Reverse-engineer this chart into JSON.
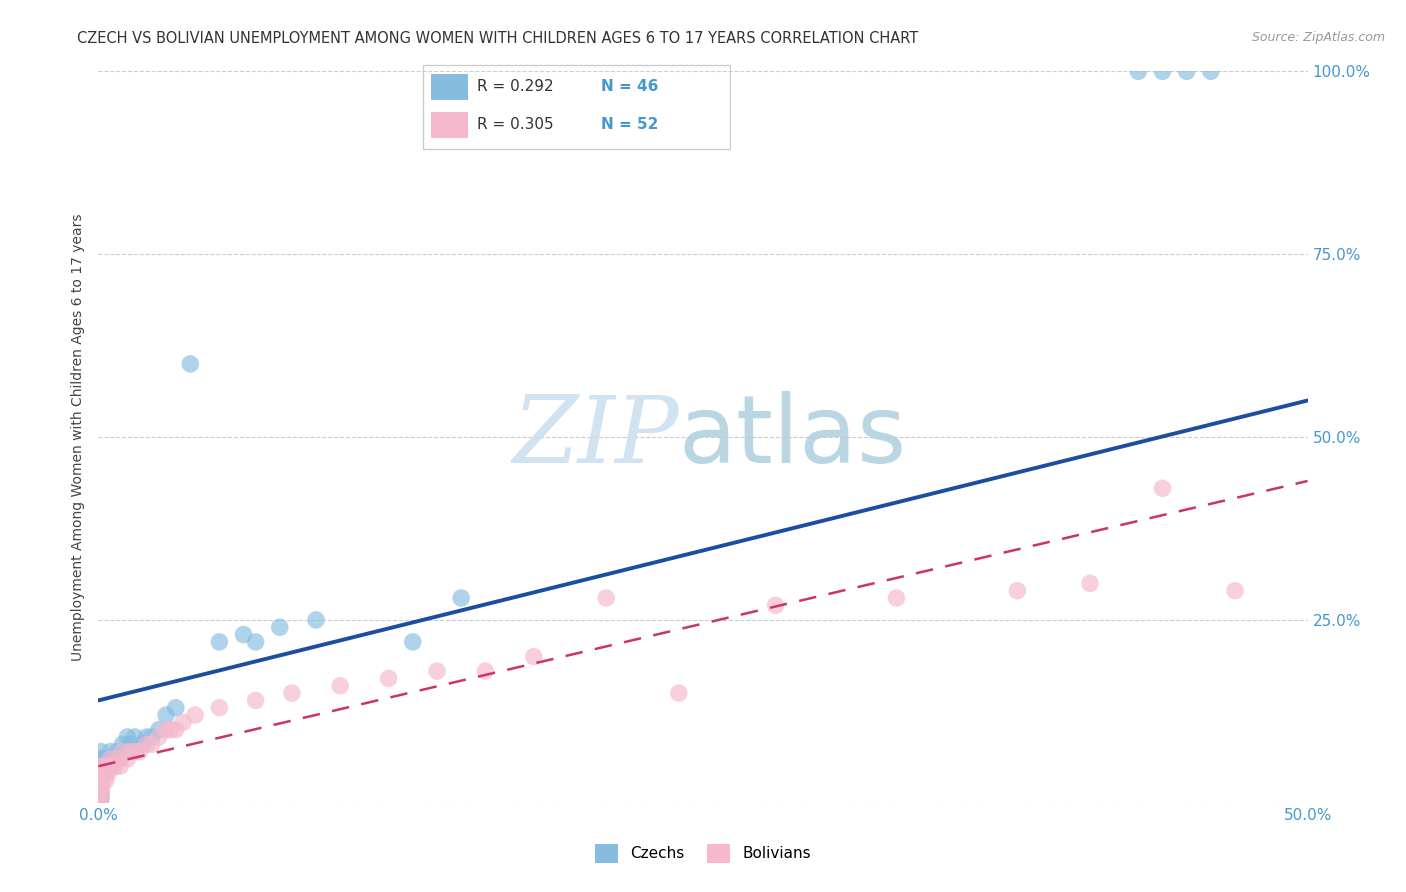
{
  "title": "CZECH VS BOLIVIAN UNEMPLOYMENT AMONG WOMEN WITH CHILDREN AGES 6 TO 17 YEARS CORRELATION CHART",
  "source": "Source: ZipAtlas.com",
  "ylabel": "Unemployment Among Women with Children Ages 6 to 17 years",
  "xlim": [
    0.0,
    0.5
  ],
  "ylim": [
    0.0,
    1.0
  ],
  "color_czech": "#85bce0",
  "color_bolivian": "#f5b8cc",
  "color_line_czech": "#1a4fa0",
  "color_line_bolivian": "#cc3366",
  "watermark_zip_color": "#cce0ef",
  "watermark_atlas_color": "#aaccdd",
  "tick_color": "#4499cc",
  "czech_r": "0.292",
  "czech_n": "46",
  "bolivian_r": "0.305",
  "bolivian_n": "52",
  "legend_label_czech": "Czechs",
  "legend_label_bolivian": "Bolivians",
  "czech_line_pts": [
    [
      0.0,
      0.14
    ],
    [
      0.5,
      0.55
    ]
  ],
  "bolivian_line_pts": [
    [
      0.0,
      0.05
    ],
    [
      0.5,
      0.44
    ]
  ],
  "czech_x": [
    0.001,
    0.001,
    0.001,
    0.001,
    0.001,
    0.001,
    0.001,
    0.001,
    0.001,
    0.001,
    0.002,
    0.002,
    0.002,
    0.003,
    0.003,
    0.004,
    0.004,
    0.005,
    0.005,
    0.005,
    0.007,
    0.008,
    0.009,
    0.01,
    0.011,
    0.012,
    0.013,
    0.015,
    0.018,
    0.02,
    0.022,
    0.025,
    0.028,
    0.032,
    0.038,
    0.05,
    0.06,
    0.065,
    0.075,
    0.09,
    0.13,
    0.15,
    0.43,
    0.44,
    0.45,
    0.46
  ],
  "czech_y": [
    0.005,
    0.01,
    0.015,
    0.02,
    0.025,
    0.03,
    0.04,
    0.05,
    0.06,
    0.07,
    0.04,
    0.05,
    0.06,
    0.04,
    0.05,
    0.05,
    0.06,
    0.05,
    0.06,
    0.07,
    0.06,
    0.07,
    0.06,
    0.08,
    0.07,
    0.09,
    0.08,
    0.09,
    0.08,
    0.09,
    0.09,
    0.1,
    0.12,
    0.13,
    0.6,
    0.22,
    0.23,
    0.22,
    0.24,
    0.25,
    0.22,
    0.28,
    1.0,
    1.0,
    1.0,
    1.0
  ],
  "bolivian_x": [
    0.001,
    0.001,
    0.001,
    0.001,
    0.001,
    0.001,
    0.001,
    0.001,
    0.001,
    0.001,
    0.002,
    0.002,
    0.002,
    0.003,
    0.003,
    0.004,
    0.004,
    0.005,
    0.005,
    0.006,
    0.007,
    0.008,
    0.009,
    0.01,
    0.012,
    0.013,
    0.015,
    0.017,
    0.02,
    0.022,
    0.025,
    0.028,
    0.03,
    0.032,
    0.035,
    0.04,
    0.05,
    0.065,
    0.08,
    0.1,
    0.12,
    0.14,
    0.16,
    0.18,
    0.21,
    0.24,
    0.28,
    0.33,
    0.38,
    0.41,
    0.44,
    0.47
  ],
  "bolivian_y": [
    0.005,
    0.01,
    0.015,
    0.02,
    0.025,
    0.03,
    0.035,
    0.04,
    0.045,
    0.05,
    0.03,
    0.04,
    0.05,
    0.03,
    0.04,
    0.04,
    0.05,
    0.05,
    0.06,
    0.05,
    0.05,
    0.06,
    0.05,
    0.07,
    0.06,
    0.07,
    0.07,
    0.07,
    0.08,
    0.08,
    0.09,
    0.1,
    0.1,
    0.1,
    0.11,
    0.12,
    0.13,
    0.14,
    0.15,
    0.16,
    0.17,
    0.18,
    0.18,
    0.2,
    0.28,
    0.15,
    0.27,
    0.28,
    0.29,
    0.3,
    0.43,
    0.29
  ]
}
